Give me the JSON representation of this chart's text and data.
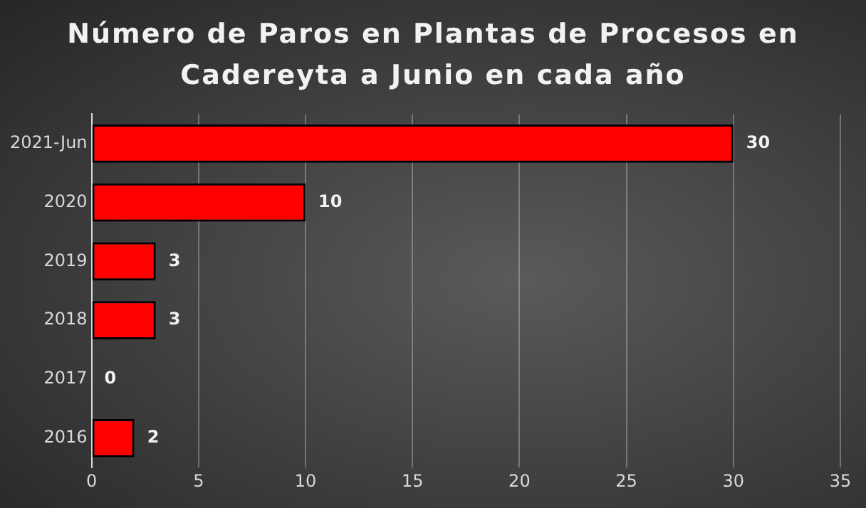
{
  "chart_data": {
    "type": "bar",
    "orientation": "horizontal",
    "title": "Número de Paros en Plantas de Procesos en Cadereyta a Junio en cada año",
    "categories": [
      "2021-Jun",
      "2020",
      "2019",
      "2018",
      "2017",
      "2016"
    ],
    "values": [
      30,
      10,
      3,
      3,
      0,
      2
    ],
    "color": "#ff0000",
    "xlim": [
      0,
      35
    ],
    "xticks": [
      0,
      5,
      10,
      15,
      20,
      25,
      30,
      35
    ],
    "grid": "x",
    "data_labels": true,
    "legend": false
  }
}
